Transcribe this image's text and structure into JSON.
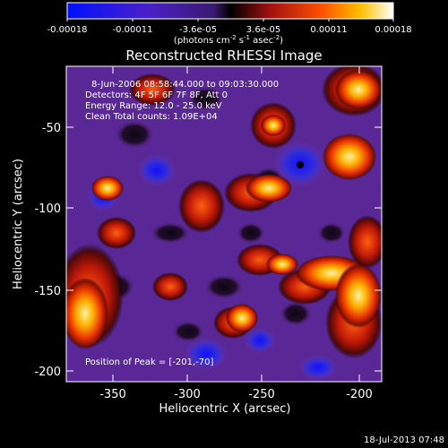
{
  "colorbar": {
    "ticks": [
      "-0.00018",
      "-0.00011",
      "-3.6e-05",
      "3.6e-05",
      "0.00011",
      "0.00018"
    ],
    "unit_main": "(photons cm",
    "unit_sup1": "-2",
    "unit_mid1": " s",
    "unit_sup2": "-1",
    "unit_mid2": " asec",
    "unit_sup3": "-2",
    "unit_end": ")"
  },
  "title": "Reconstructed RHESSI Image",
  "info": {
    "line1": "8-Jun-2006 08:58:44.000 to 09:03:30.000",
    "line2": "Detectors: 4F 5F 6F 7F 8F, Att 0",
    "line3": "Energy Range: 12.0 - 25.0 keV",
    "line4": "Clean    Total counts: 1.09E+04",
    "peak": "Position of Peak = [-201,-70]"
  },
  "axes": {
    "xlabel": "Heliocentric X (arcsec)",
    "ylabel": "Heliocentric Y (arcsec)",
    "xticks": [
      "-350",
      "-300",
      "-250",
      "-200"
    ],
    "yticks": [
      "-50",
      "-100",
      "-150",
      "-200"
    ]
  },
  "footer": {
    "timestamp": "18-Jul-2013 07:48"
  },
  "colors": {
    "background": "#000000",
    "text": "#ffffff",
    "low": "#1a1aff",
    "mid": "#6a2fb0",
    "high": "#ffffff"
  }
}
